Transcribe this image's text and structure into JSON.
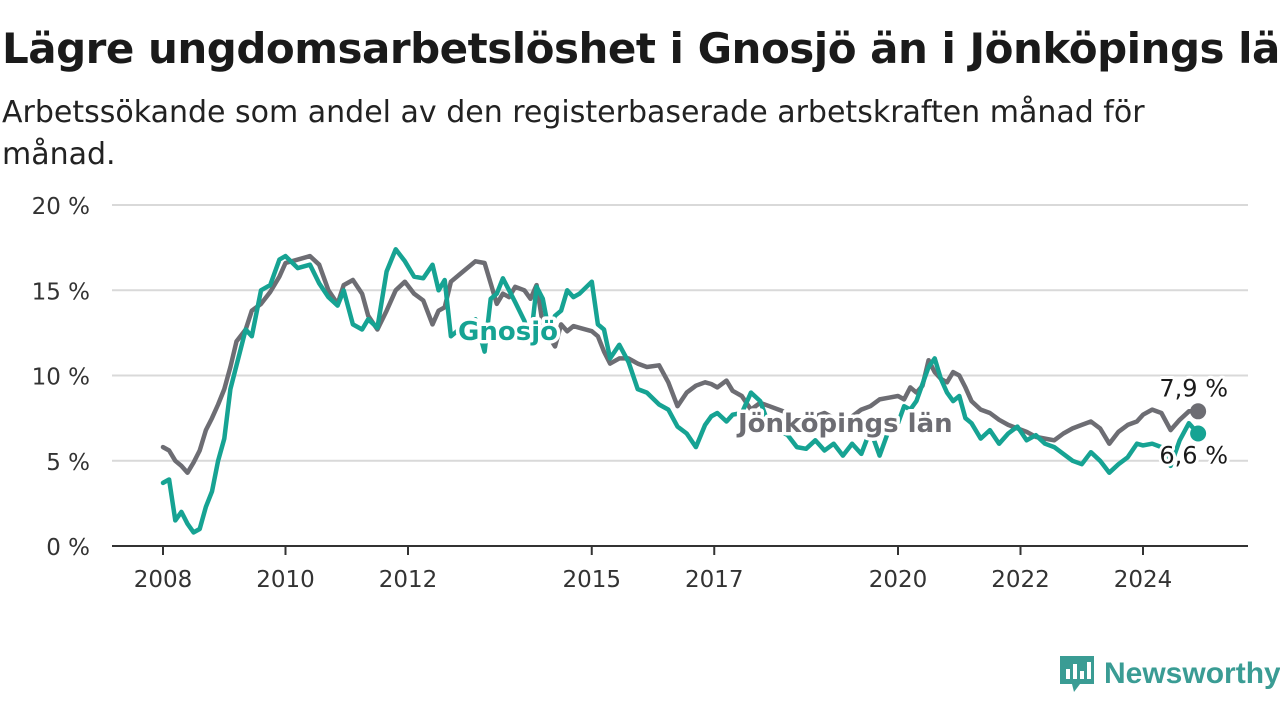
{
  "title": "Lägre ungdomsarbetslöshet i Gnosjö än i Jönköpings län",
  "subtitle": "Arbetssökande som andel av den registerbaserade arbetskraften månad för månad.",
  "brand": {
    "name": "Newsworthy",
    "icon": "newsworthy-logo-icon"
  },
  "colors": {
    "gnosjo": "#16a393",
    "lan": "#6d6d73",
    "grid": "#d9d9d9",
    "axis": "#333333"
  },
  "chart_data": {
    "type": "line",
    "ylim": [
      0,
      20
    ],
    "y_ticks": [
      0,
      5,
      10,
      15,
      20
    ],
    "y_tick_labels": [
      "0 %",
      "5 %",
      "10 %",
      "15 %",
      "20 %"
    ],
    "x_ticks": [
      2008,
      2010,
      2012,
      2015,
      2017,
      2020,
      2022,
      2024
    ],
    "x_tick_labels": [
      "2008",
      "2010",
      "2012",
      "2015",
      "2017",
      "2020",
      "2022",
      "2024"
    ],
    "grid": true,
    "series": [
      {
        "name": "Jönköpings län",
        "end_label": "7,9 %",
        "points": [
          [
            2008.0,
            5.8
          ],
          [
            2008.1,
            5.6
          ],
          [
            2008.2,
            5.0
          ],
          [
            2008.3,
            4.7
          ],
          [
            2008.4,
            4.3
          ],
          [
            2008.5,
            4.9
          ],
          [
            2008.6,
            5.6
          ],
          [
            2008.7,
            6.8
          ],
          [
            2008.8,
            7.5
          ],
          [
            2008.9,
            8.3
          ],
          [
            2009.0,
            9.2
          ],
          [
            2009.1,
            10.5
          ],
          [
            2009.2,
            12.0
          ],
          [
            2009.35,
            12.7
          ],
          [
            2009.45,
            13.8
          ],
          [
            2009.6,
            14.2
          ],
          [
            2009.75,
            14.9
          ],
          [
            2009.9,
            15.8
          ],
          [
            2010.0,
            16.6
          ],
          [
            2010.2,
            16.8
          ],
          [
            2010.4,
            17.0
          ],
          [
            2010.55,
            16.5
          ],
          [
            2010.7,
            15.0
          ],
          [
            2010.85,
            14.2
          ],
          [
            2010.95,
            15.3
          ],
          [
            2011.1,
            15.6
          ],
          [
            2011.25,
            14.8
          ],
          [
            2011.35,
            13.5
          ],
          [
            2011.5,
            12.7
          ],
          [
            2011.65,
            13.8
          ],
          [
            2011.8,
            15.0
          ],
          [
            2011.95,
            15.5
          ],
          [
            2012.1,
            14.8
          ],
          [
            2012.25,
            14.4
          ],
          [
            2012.4,
            13.0
          ],
          [
            2012.5,
            13.8
          ],
          [
            2012.6,
            14.0
          ],
          [
            2012.7,
            15.5
          ],
          [
            2012.9,
            16.1
          ],
          [
            2013.1,
            16.7
          ],
          [
            2013.25,
            16.6
          ],
          [
            2013.35,
            15.4
          ],
          [
            2013.45,
            14.2
          ],
          [
            2013.55,
            14.8
          ],
          [
            2013.65,
            14.6
          ],
          [
            2013.75,
            15.2
          ],
          [
            2013.9,
            15.0
          ],
          [
            2014.0,
            14.5
          ],
          [
            2014.1,
            15.3
          ],
          [
            2014.2,
            13.0
          ],
          [
            2014.3,
            12.3
          ],
          [
            2014.4,
            11.7
          ],
          [
            2014.5,
            13.0
          ],
          [
            2014.6,
            12.6
          ],
          [
            2014.7,
            12.9
          ],
          [
            2014.8,
            12.8
          ],
          [
            2015.0,
            12.6
          ],
          [
            2015.1,
            12.3
          ],
          [
            2015.2,
            11.4
          ],
          [
            2015.3,
            10.7
          ],
          [
            2015.45,
            11.0
          ],
          [
            2015.6,
            11.0
          ],
          [
            2015.75,
            10.7
          ],
          [
            2015.9,
            10.5
          ],
          [
            2016.1,
            10.6
          ],
          [
            2016.25,
            9.6
          ],
          [
            2016.4,
            8.2
          ],
          [
            2016.55,
            9.0
          ],
          [
            2016.7,
            9.4
          ],
          [
            2016.85,
            9.6
          ],
          [
            2016.95,
            9.5
          ],
          [
            2017.05,
            9.3
          ],
          [
            2017.2,
            9.7
          ],
          [
            2017.3,
            9.1
          ],
          [
            2017.45,
            8.8
          ],
          [
            2017.6,
            8.0
          ],
          [
            2017.75,
            8.4
          ],
          [
            2017.9,
            8.2
          ],
          [
            2018.05,
            8.0
          ],
          [
            2018.2,
            7.8
          ],
          [
            2018.35,
            7.4
          ],
          [
            2018.5,
            7.2
          ],
          [
            2018.65,
            7.6
          ],
          [
            2018.8,
            7.8
          ],
          [
            2018.95,
            7.5
          ],
          [
            2019.1,
            7.2
          ],
          [
            2019.25,
            7.6
          ],
          [
            2019.4,
            8.0
          ],
          [
            2019.55,
            8.2
          ],
          [
            2019.7,
            8.6
          ],
          [
            2019.85,
            8.7
          ],
          [
            2020.0,
            8.8
          ],
          [
            2020.1,
            8.6
          ],
          [
            2020.2,
            9.3
          ],
          [
            2020.3,
            9.0
          ],
          [
            2020.4,
            9.4
          ],
          [
            2020.5,
            10.9
          ],
          [
            2020.6,
            10.2
          ],
          [
            2020.7,
            9.8
          ],
          [
            2020.8,
            9.6
          ],
          [
            2020.9,
            10.2
          ],
          [
            2021.0,
            10.0
          ],
          [
            2021.1,
            9.3
          ],
          [
            2021.2,
            8.5
          ],
          [
            2021.35,
            8.0
          ],
          [
            2021.5,
            7.8
          ],
          [
            2021.65,
            7.4
          ],
          [
            2021.8,
            7.1
          ],
          [
            2021.95,
            6.9
          ],
          [
            2022.1,
            6.7
          ],
          [
            2022.25,
            6.4
          ],
          [
            2022.4,
            6.3
          ],
          [
            2022.55,
            6.2
          ],
          [
            2022.7,
            6.6
          ],
          [
            2022.85,
            6.9
          ],
          [
            2023.0,
            7.1
          ],
          [
            2023.15,
            7.3
          ],
          [
            2023.3,
            6.9
          ],
          [
            2023.45,
            6.0
          ],
          [
            2023.6,
            6.7
          ],
          [
            2023.75,
            7.1
          ],
          [
            2023.9,
            7.3
          ],
          [
            2024.0,
            7.7
          ],
          [
            2024.15,
            8.0
          ],
          [
            2024.3,
            7.8
          ],
          [
            2024.45,
            6.8
          ],
          [
            2024.6,
            7.4
          ],
          [
            2024.75,
            7.9
          ],
          [
            2024.9,
            7.9
          ]
        ]
      },
      {
        "name": "Gnosjö",
        "end_label": "6,6 %",
        "points": [
          [
            2008.0,
            3.7
          ],
          [
            2008.1,
            3.9
          ],
          [
            2008.2,
            1.5
          ],
          [
            2008.3,
            2.0
          ],
          [
            2008.4,
            1.3
          ],
          [
            2008.5,
            0.8
          ],
          [
            2008.6,
            1.0
          ],
          [
            2008.7,
            2.3
          ],
          [
            2008.8,
            3.2
          ],
          [
            2008.9,
            5.0
          ],
          [
            2009.0,
            6.3
          ],
          [
            2009.1,
            9.2
          ],
          [
            2009.2,
            10.6
          ],
          [
            2009.35,
            12.7
          ],
          [
            2009.45,
            12.3
          ],
          [
            2009.6,
            15.0
          ],
          [
            2009.75,
            15.3
          ],
          [
            2009.9,
            16.8
          ],
          [
            2010.0,
            17.0
          ],
          [
            2010.2,
            16.3
          ],
          [
            2010.4,
            16.5
          ],
          [
            2010.55,
            15.4
          ],
          [
            2010.7,
            14.6
          ],
          [
            2010.85,
            14.1
          ],
          [
            2010.95,
            15.0
          ],
          [
            2011.1,
            13.0
          ],
          [
            2011.25,
            12.7
          ],
          [
            2011.35,
            13.3
          ],
          [
            2011.5,
            12.8
          ],
          [
            2011.65,
            16.1
          ],
          [
            2011.8,
            17.4
          ],
          [
            2011.95,
            16.7
          ],
          [
            2012.1,
            15.8
          ],
          [
            2012.25,
            15.7
          ],
          [
            2012.4,
            16.5
          ],
          [
            2012.5,
            15.0
          ],
          [
            2012.6,
            15.6
          ],
          [
            2012.7,
            12.3
          ],
          [
            2012.9,
            12.9
          ],
          [
            2013.1,
            13.3
          ],
          [
            2013.25,
            11.4
          ],
          [
            2013.35,
            14.5
          ],
          [
            2013.45,
            14.8
          ],
          [
            2013.55,
            15.7
          ],
          [
            2013.65,
            15.0
          ],
          [
            2013.75,
            14.3
          ],
          [
            2013.9,
            13.2
          ],
          [
            2014.0,
            12.0
          ],
          [
            2014.1,
            15.2
          ],
          [
            2014.2,
            14.5
          ],
          [
            2014.3,
            12.6
          ],
          [
            2014.4,
            13.5
          ],
          [
            2014.5,
            13.8
          ],
          [
            2014.6,
            15.0
          ],
          [
            2014.7,
            14.6
          ],
          [
            2014.8,
            14.8
          ],
          [
            2015.0,
            15.5
          ],
          [
            2015.1,
            13.0
          ],
          [
            2015.2,
            12.7
          ],
          [
            2015.3,
            11.0
          ],
          [
            2015.45,
            11.8
          ],
          [
            2015.6,
            10.8
          ],
          [
            2015.75,
            9.2
          ],
          [
            2015.9,
            9.0
          ],
          [
            2016.1,
            8.3
          ],
          [
            2016.25,
            8.0
          ],
          [
            2016.4,
            7.0
          ],
          [
            2016.55,
            6.6
          ],
          [
            2016.7,
            5.8
          ],
          [
            2016.85,
            7.1
          ],
          [
            2016.95,
            7.6
          ],
          [
            2017.05,
            7.8
          ],
          [
            2017.2,
            7.3
          ],
          [
            2017.3,
            7.7
          ],
          [
            2017.45,
            7.8
          ],
          [
            2017.6,
            9.0
          ],
          [
            2017.75,
            8.5
          ],
          [
            2017.9,
            7.0
          ],
          [
            2018.05,
            6.8
          ],
          [
            2018.2,
            6.5
          ],
          [
            2018.35,
            5.8
          ],
          [
            2018.5,
            5.7
          ],
          [
            2018.65,
            6.2
          ],
          [
            2018.8,
            5.6
          ],
          [
            2018.95,
            6.0
          ],
          [
            2019.1,
            5.3
          ],
          [
            2019.25,
            6.0
          ],
          [
            2019.4,
            5.4
          ],
          [
            2019.55,
            6.8
          ],
          [
            2019.7,
            5.3
          ],
          [
            2019.85,
            6.8
          ],
          [
            2020.0,
            7.2
          ],
          [
            2020.1,
            8.2
          ],
          [
            2020.2,
            8.0
          ],
          [
            2020.3,
            8.5
          ],
          [
            2020.4,
            9.5
          ],
          [
            2020.5,
            10.5
          ],
          [
            2020.6,
            11.0
          ],
          [
            2020.7,
            9.8
          ],
          [
            2020.8,
            9.0
          ],
          [
            2020.9,
            8.5
          ],
          [
            2021.0,
            8.8
          ],
          [
            2021.1,
            7.5
          ],
          [
            2021.2,
            7.2
          ],
          [
            2021.35,
            6.3
          ],
          [
            2021.5,
            6.8
          ],
          [
            2021.65,
            6.0
          ],
          [
            2021.8,
            6.6
          ],
          [
            2021.95,
            7.0
          ],
          [
            2022.1,
            6.2
          ],
          [
            2022.25,
            6.5
          ],
          [
            2022.4,
            6.0
          ],
          [
            2022.55,
            5.8
          ],
          [
            2022.7,
            5.4
          ],
          [
            2022.85,
            5.0
          ],
          [
            2023.0,
            4.8
          ],
          [
            2023.15,
            5.5
          ],
          [
            2023.3,
            5.0
          ],
          [
            2023.45,
            4.3
          ],
          [
            2023.6,
            4.8
          ],
          [
            2023.75,
            5.2
          ],
          [
            2023.9,
            6.0
          ],
          [
            2024.0,
            5.9
          ],
          [
            2024.15,
            6.0
          ],
          [
            2024.3,
            5.8
          ],
          [
            2024.45,
            4.7
          ],
          [
            2024.6,
            6.2
          ],
          [
            2024.75,
            7.2
          ],
          [
            2024.9,
            6.6
          ]
        ]
      }
    ]
  }
}
